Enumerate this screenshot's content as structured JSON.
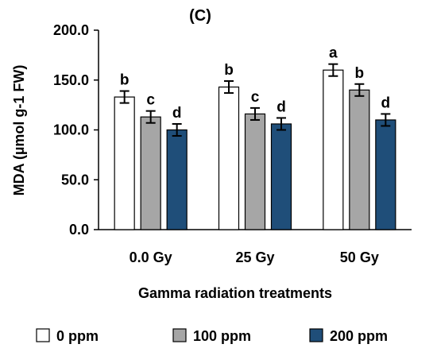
{
  "chart_data": {
    "type": "bar",
    "title": "(C)",
    "xlabel": "Gamma radiation treatments",
    "ylabel": "MDA (µmol g-1 FW)",
    "categories": [
      "0.0 Gy",
      "25 Gy",
      "50 Gy"
    ],
    "ylim": [
      0,
      200
    ],
    "yticks": [
      "0.0",
      "50.0",
      "100.0",
      "150.0",
      "200.0"
    ],
    "grid": false,
    "legend_position": "bottom",
    "series": [
      {
        "name": "0 ppm",
        "color": "#ffffff",
        "values": [
          133,
          143,
          160
        ],
        "errors": [
          6,
          6,
          6
        ],
        "letters": [
          "b",
          "b",
          "a"
        ]
      },
      {
        "name": "100 ppm",
        "color": "#a6a6a6",
        "values": [
          113,
          116,
          140
        ],
        "errors": [
          6,
          6,
          6
        ],
        "letters": [
          "c",
          "c",
          "b"
        ]
      },
      {
        "name": "200 ppm",
        "color": "#1f4e79",
        "values": [
          100,
          106,
          110
        ],
        "errors": [
          6,
          6,
          6
        ],
        "letters": [
          "d",
          "d",
          "d"
        ]
      }
    ]
  }
}
